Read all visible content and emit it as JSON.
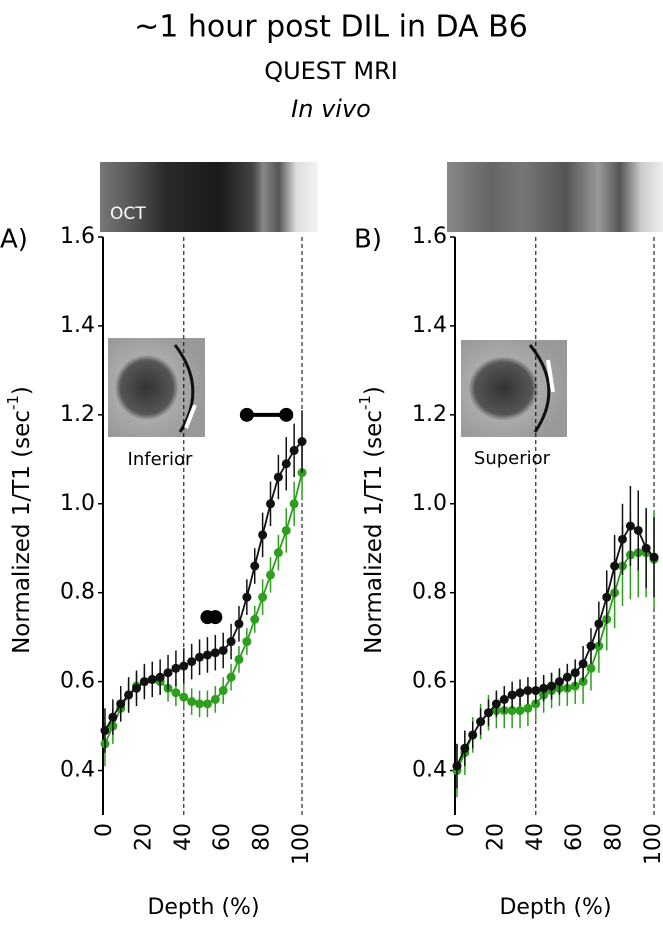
{
  "header": {
    "title": "~1 hour post DIL in DA B6",
    "subtitle": "QUEST MRI",
    "note": "In vivo"
  },
  "chart_data": [
    {
      "type": "line",
      "panel": "A)",
      "image_label": "OCT",
      "inset_label": "Inferior",
      "ylabel": {
        "text": "Normalized 1/T1 (sec",
        "sup": "-1",
        "end": ")"
      },
      "xlabel": "Depth (%)",
      "xlim": [
        -1,
        101
      ],
      "xticks": [
        0,
        20,
        40,
        60,
        80,
        100
      ],
      "ylim": [
        0.3,
        1.6
      ],
      "yticks": [
        0.4,
        0.6,
        0.8,
        {
          "value": 1,
          "label": "1.0"
        },
        1.2,
        1.4,
        1.6
      ],
      "vlines": [
        40,
        100
      ],
      "significance": [
        {
          "x": [
            72,
            92
          ],
          "y": 1.2
        },
        {
          "x": [
            52,
            56
          ],
          "y": 0.745
        }
      ],
      "x": [
        0,
        4,
        8,
        12,
        16,
        20,
        24,
        28,
        32,
        36,
        40,
        44,
        48,
        52,
        56,
        60,
        64,
        68,
        72,
        76,
        80,
        84,
        88,
        92,
        96,
        100
      ],
      "series": [
        {
          "color": "#111111",
          "values": [
            0.49,
            0.52,
            0.55,
            0.57,
            0.585,
            0.6,
            0.605,
            0.61,
            0.62,
            0.63,
            0.635,
            0.645,
            0.655,
            0.66,
            0.665,
            0.67,
            0.69,
            0.73,
            0.79,
            0.86,
            0.93,
            1.0,
            1.06,
            1.09,
            1.12,
            1.14
          ],
          "errors": [
            0.05,
            0.04,
            0.04,
            0.04,
            0.04,
            0.04,
            0.04,
            0.04,
            0.04,
            0.04,
            0.04,
            0.04,
            0.04,
            0.04,
            0.04,
            0.04,
            0.04,
            0.04,
            0.04,
            0.04,
            0.05,
            0.05,
            0.05,
            0.06,
            0.06,
            0.07
          ]
        },
        {
          "color": "#2e9e1e",
          "values": [
            0.46,
            0.5,
            0.54,
            0.57,
            0.59,
            0.6,
            0.605,
            0.6,
            0.585,
            0.575,
            0.565,
            0.555,
            0.55,
            0.55,
            0.56,
            0.58,
            0.61,
            0.65,
            0.69,
            0.74,
            0.79,
            0.84,
            0.89,
            0.94,
            1.0,
            1.07
          ],
          "errors": [
            0.05,
            0.04,
            0.03,
            0.03,
            0.03,
            0.03,
            0.03,
            0.03,
            0.03,
            0.03,
            0.03,
            0.03,
            0.03,
            0.03,
            0.03,
            0.03,
            0.03,
            0.03,
            0.03,
            0.03,
            0.04,
            0.04,
            0.04,
            0.05,
            0.05,
            0.06
          ]
        }
      ]
    },
    {
      "type": "line",
      "panel": "B)",
      "inset_label": "Superior",
      "ylabel": {
        "text": "Normalized 1/T1 (sec",
        "sup": "-1",
        "end": ")"
      },
      "xlabel": "Depth (%)",
      "xlim": [
        -1,
        101
      ],
      "xticks": [
        0,
        20,
        40,
        60,
        80,
        100
      ],
      "ylim": [
        0.3,
        1.6
      ],
      "yticks": [
        0.4,
        0.6,
        0.8,
        {
          "value": 1,
          "label": "1.0"
        },
        1.2,
        1.4,
        1.6
      ],
      "vlines": [
        40,
        100
      ],
      "x": [
        0,
        4,
        8,
        12,
        16,
        20,
        24,
        28,
        32,
        36,
        40,
        44,
        48,
        52,
        56,
        60,
        64,
        68,
        72,
        76,
        80,
        84,
        88,
        92,
        96,
        100
      ],
      "series": [
        {
          "color": "#111111",
          "values": [
            0.41,
            0.45,
            0.48,
            0.51,
            0.53,
            0.55,
            0.56,
            0.57,
            0.575,
            0.58,
            0.58,
            0.585,
            0.59,
            0.6,
            0.61,
            0.62,
            0.64,
            0.68,
            0.73,
            0.79,
            0.86,
            0.92,
            0.95,
            0.94,
            0.9,
            0.88
          ],
          "errors": [
            0.05,
            0.04,
            0.03,
            0.03,
            0.03,
            0.03,
            0.03,
            0.03,
            0.03,
            0.03,
            0.03,
            0.03,
            0.03,
            0.03,
            0.03,
            0.03,
            0.04,
            0.04,
            0.05,
            0.06,
            0.07,
            0.08,
            0.09,
            0.09,
            0.09,
            0.09
          ]
        },
        {
          "color": "#2e9e1e",
          "values": [
            0.4,
            0.44,
            0.48,
            0.51,
            0.53,
            0.535,
            0.535,
            0.535,
            0.535,
            0.54,
            0.55,
            0.57,
            0.58,
            0.585,
            0.585,
            0.59,
            0.6,
            0.63,
            0.68,
            0.74,
            0.8,
            0.86,
            0.885,
            0.89,
            0.89,
            0.875
          ],
          "errors": [
            0.06,
            0.05,
            0.04,
            0.04,
            0.04,
            0.04,
            0.04,
            0.04,
            0.04,
            0.04,
            0.04,
            0.04,
            0.04,
            0.04,
            0.04,
            0.04,
            0.05,
            0.05,
            0.06,
            0.07,
            0.08,
            0.09,
            0.1,
            0.1,
            0.1,
            0.11
          ]
        }
      ]
    }
  ]
}
